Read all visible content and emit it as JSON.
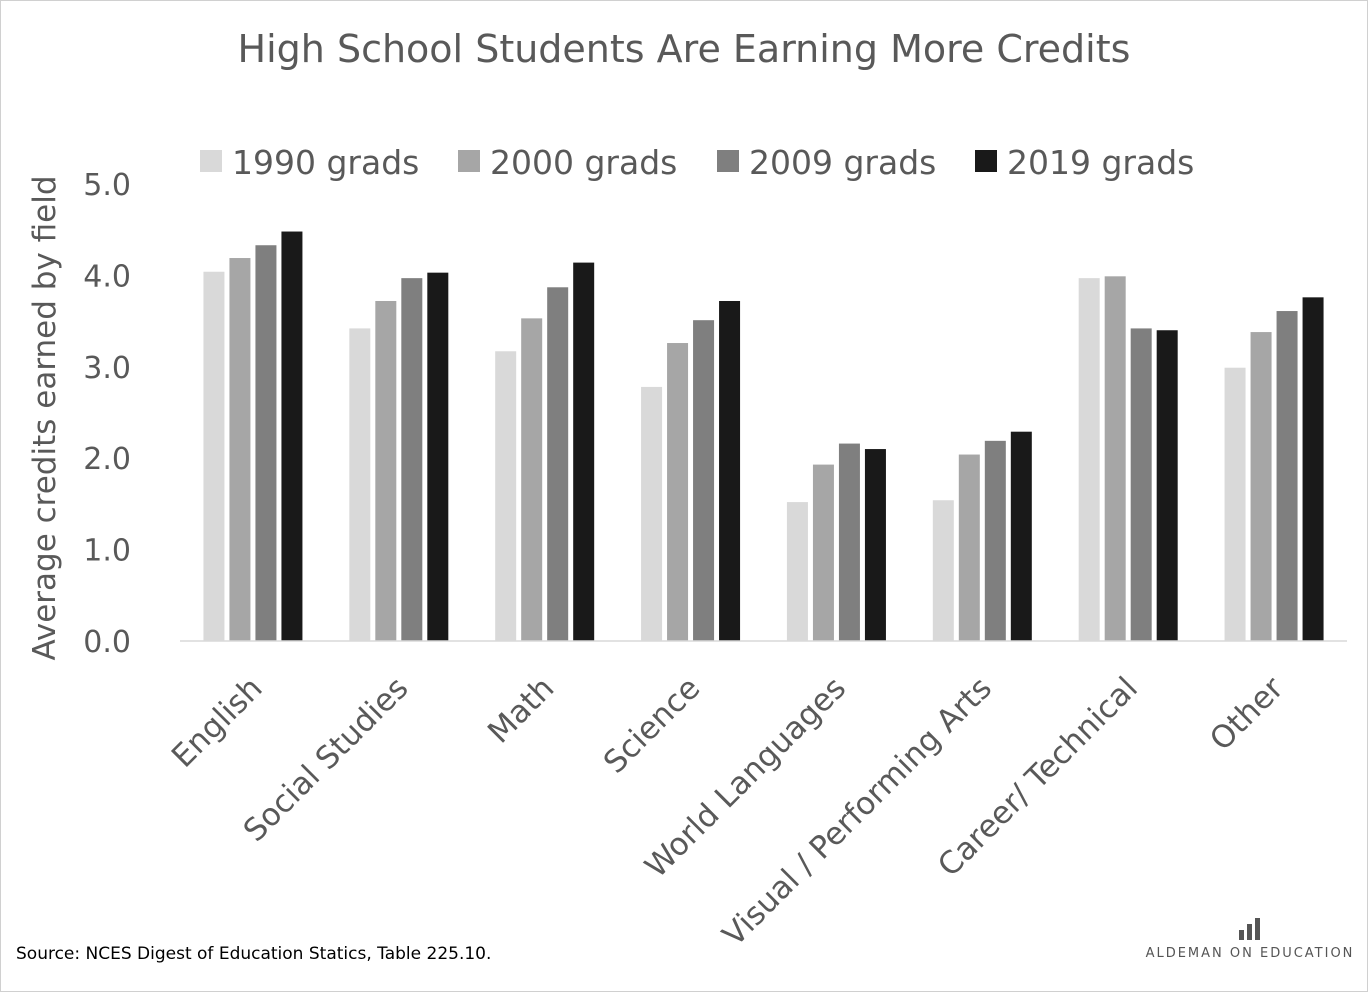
{
  "chart_data": {
    "type": "bar",
    "title": "High School Students Are Earning More Credits",
    "ylabel": "Average credits earned by field",
    "xlabel": "",
    "ylim": [
      0,
      5
    ],
    "yticks": [
      "0.0",
      "1.0",
      "2.0",
      "3.0",
      "4.0",
      "5.0"
    ],
    "grid": false,
    "legend_position": "top",
    "categories": [
      "English",
      "Social Studies",
      "Math",
      "Science",
      "World Languages",
      "Visual / Performing Arts",
      "Career/ Technical",
      "Other"
    ],
    "series": [
      {
        "name": "1990 grads",
        "color": "#d9d9d9",
        "values": [
          4.04,
          3.42,
          3.17,
          2.78,
          1.52,
          1.54,
          3.97,
          2.99
        ]
      },
      {
        "name": "2000 grads",
        "color": "#a6a6a6",
        "values": [
          4.19,
          3.72,
          3.53,
          3.26,
          1.93,
          2.04,
          3.99,
          3.38
        ]
      },
      {
        "name": "2009 grads",
        "color": "#7f7f7f",
        "values": [
          4.33,
          3.97,
          3.87,
          3.51,
          2.16,
          2.19,
          3.42,
          3.61
        ]
      },
      {
        "name": "2019 grads",
        "color": "#191919",
        "values": [
          4.48,
          4.03,
          4.14,
          3.72,
          2.1,
          2.29,
          3.4,
          3.76
        ]
      }
    ]
  },
  "footer": {
    "source": "Source: NCES Digest of Education Statics, Table 225.10.",
    "brand": "ALDEMAN ON EDUCATION"
  }
}
